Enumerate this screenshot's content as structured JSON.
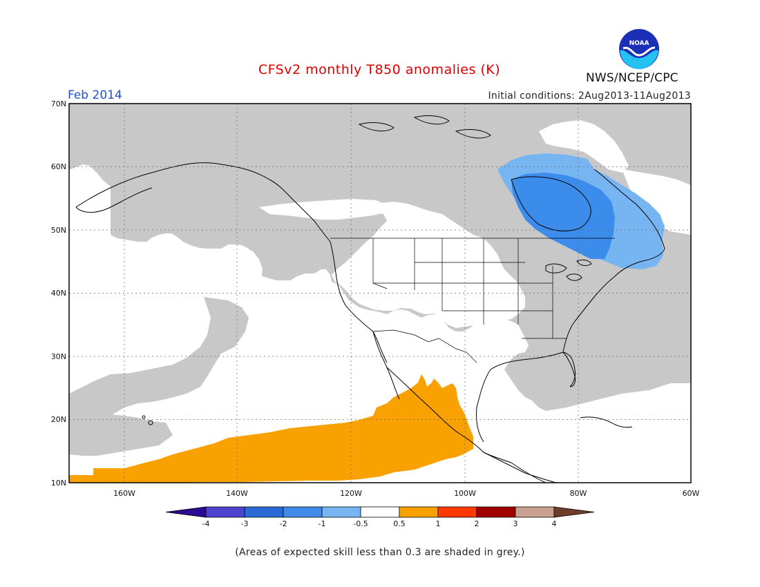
{
  "header": {
    "title": "CFSv2 monthly T850 anomalies (K)",
    "period": "Feb 2014",
    "initial_conditions": "Initial conditions: 2Aug2013-11Aug2013",
    "agency": "NWS/NCEP/CPC",
    "logo_text": "NOAA"
  },
  "map": {
    "lat_labels": [
      "70N",
      "60N",
      "50N",
      "40N",
      "30N",
      "20N",
      "10N"
    ],
    "lon_labels": [
      "160W",
      "140W",
      "120W",
      "100W",
      "80W",
      "60W"
    ],
    "region": "North America and northeast Pacific",
    "shaded_grey_meaning": "skill < 0.3",
    "features": [
      {
        "name": "cold anomaly over Hudson Bay / Quebec",
        "category": "-2 to -1"
      },
      {
        "name": "cool fringe Labrador / Ontario",
        "category": "-1 to -0.5"
      },
      {
        "name": "warm anomaly west of Mexico",
        "category": "0.5 to 1"
      }
    ],
    "colors": {
      "grey": "#c8c8c8",
      "cool_light": "#77b4f2",
      "cool_mid": "#3b8ceb",
      "warm": "#f9a100"
    }
  },
  "colorbar": {
    "labels": [
      "-4",
      "-3",
      "-2",
      "-1",
      "-0.5",
      "0.5",
      "1",
      "2",
      "3",
      "4"
    ],
    "colors": [
      "#2b0a94",
      "#4c44cf",
      "#2a6ad4",
      "#3e8be9",
      "#77b4f2",
      "#ffffff",
      "#f9a100",
      "#ff3a00",
      "#a00000",
      "#c9a091",
      "#6e3c2a"
    ]
  },
  "footnote": "(Areas of expected skill less than 0.3 are shaded in grey.)"
}
